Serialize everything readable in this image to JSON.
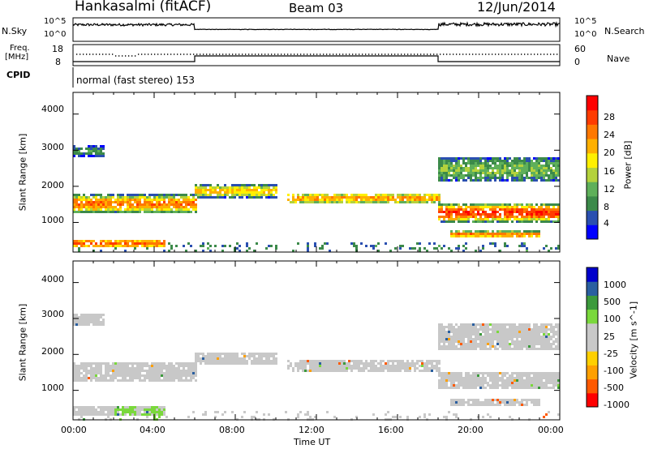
{
  "header": {
    "station": "Hankasalmi (fitACF)",
    "beam": "Beam 03",
    "date": "12/Jun/2014"
  },
  "info_panels": {
    "nsky_label": "N.Sky",
    "nsky_ticks": [
      "10^5",
      "10^0"
    ],
    "nsearch_label": "N.Search",
    "freq_label": "Freq.",
    "freq_unit": "[MHz]",
    "freq_ticks": [
      "18",
      "8"
    ],
    "nave_label": "Nave",
    "nave_ticks": [
      "60",
      "0"
    ],
    "cpid_label": "CPID",
    "cpid_text": "normal (fast stereo) 153"
  },
  "colors": {
    "power_scale": [
      "#0000ff",
      "#2a4fb0",
      "#3c8a4a",
      "#5fb05a",
      "#b4d23c",
      "#fff000",
      "#ffb000",
      "#ff7800",
      "#ff3c00",
      "#ff0000"
    ],
    "velocity_scale": [
      "#ff0000",
      "#ff5a00",
      "#ffa000",
      "#ffd000",
      "#c8c8c8",
      "#c8c8c8",
      "#7ad83c",
      "#3c9a3c",
      "#2a5fa0",
      "#0000cc"
    ],
    "ground_scatter": "#c8c8c8"
  },
  "chart_data": [
    {
      "type": "heatmap",
      "parameter": "power",
      "xlabel": "Time UT",
      "ylabel": "Slant Range [km]",
      "xlim": [
        "00:00",
        "24:00"
      ],
      "ylim": [
        180,
        4600
      ],
      "x_tick_labels": [
        "00:00",
        "04:00",
        "08:00",
        "12:00",
        "16:00",
        "20:00",
        "00:00"
      ],
      "y_tick_labels": [
        "1000",
        "2000",
        "3000",
        "4000"
      ],
      "colorbar_label": "Power [dB]",
      "colorbar_ticks": [
        "4",
        "8",
        "12",
        "16",
        "20",
        "24",
        "28"
      ],
      "colorbar_range": [
        0,
        32
      ],
      "scatter_bands": [
        {
          "t_start": 0.0,
          "t_end": 6.0,
          "range_center": 1550,
          "range_width": 500,
          "peak_dB": 24
        },
        {
          "t_start": 0.0,
          "t_end": 4.5,
          "range_center": 450,
          "range_width": 250,
          "peak_dB": 26
        },
        {
          "t_start": 6.0,
          "t_end": 10.0,
          "range_center": 1900,
          "range_width": 350,
          "peak_dB": 20
        },
        {
          "t_start": 10.5,
          "t_end": 18.0,
          "range_center": 1700,
          "range_width": 300,
          "peak_dB": 22
        },
        {
          "t_start": 18.0,
          "t_end": 24.0,
          "range_center": 1300,
          "range_width": 500,
          "peak_dB": 28
        },
        {
          "t_start": 18.5,
          "t_end": 23.0,
          "range_center": 700,
          "range_width": 200,
          "peak_dB": 24
        },
        {
          "t_start": 18.0,
          "t_end": 24.0,
          "range_center": 2500,
          "range_width": 700,
          "peak_dB": 12
        },
        {
          "t_start": 0.0,
          "t_end": 1.5,
          "range_center": 3000,
          "range_width": 300,
          "peak_dB": 8
        }
      ]
    },
    {
      "type": "heatmap",
      "parameter": "velocity",
      "xlabel": "Time UT",
      "ylabel": "Slant Range [km]",
      "xlim": [
        "00:00",
        "24:00"
      ],
      "ylim": [
        180,
        4600
      ],
      "x_tick_labels": [
        "00:00",
        "04:00",
        "08:00",
        "12:00",
        "16:00",
        "20:00",
        "00:00"
      ],
      "y_tick_labels": [
        "1000",
        "2000",
        "3000",
        "4000"
      ],
      "colorbar_label": "Velocity [m s^-1]",
      "colorbar_ticks": [
        "1000",
        "500",
        "100",
        "25",
        "-25",
        "-100",
        "-500",
        "-1000"
      ],
      "dominant": "ground scatter (grey)"
    }
  ]
}
